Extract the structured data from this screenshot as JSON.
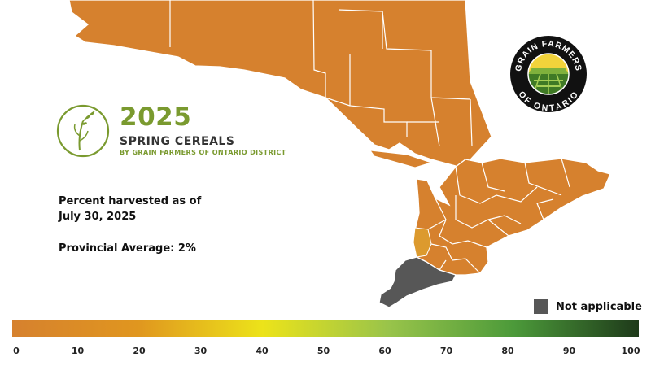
{
  "header": {
    "year": "2025",
    "crop": "SPRING CEREALS",
    "subtitle": "BY GRAIN FARMERS OF ONTARIO DISTRICT"
  },
  "info": {
    "line1": "Percent harvested as of",
    "line2": "July 30, 2025",
    "average": "Provincial Average: 2%"
  },
  "logo": {
    "text_top": "GRAIN FARMERS",
    "text_bottom": "OF ONTARIO"
  },
  "legend": {
    "not_applicable": "Not applicable",
    "not_applicable_color": "#575757",
    "scale_colors": [
      "#d6812e",
      "#e0961f",
      "#ece31a",
      "#99c44a",
      "#4c9a3a",
      "#1e3a1a"
    ],
    "scale_ticks": [
      "0",
      "10",
      "20",
      "30",
      "40",
      "50",
      "60",
      "70",
      "80",
      "90",
      "100"
    ]
  },
  "map": {
    "north_color": "#d6812e",
    "south_color": "#d6812e",
    "southwest_color": "#dc9a2e",
    "not_applicable_color": "#575757",
    "border_color": "#ffffff"
  }
}
